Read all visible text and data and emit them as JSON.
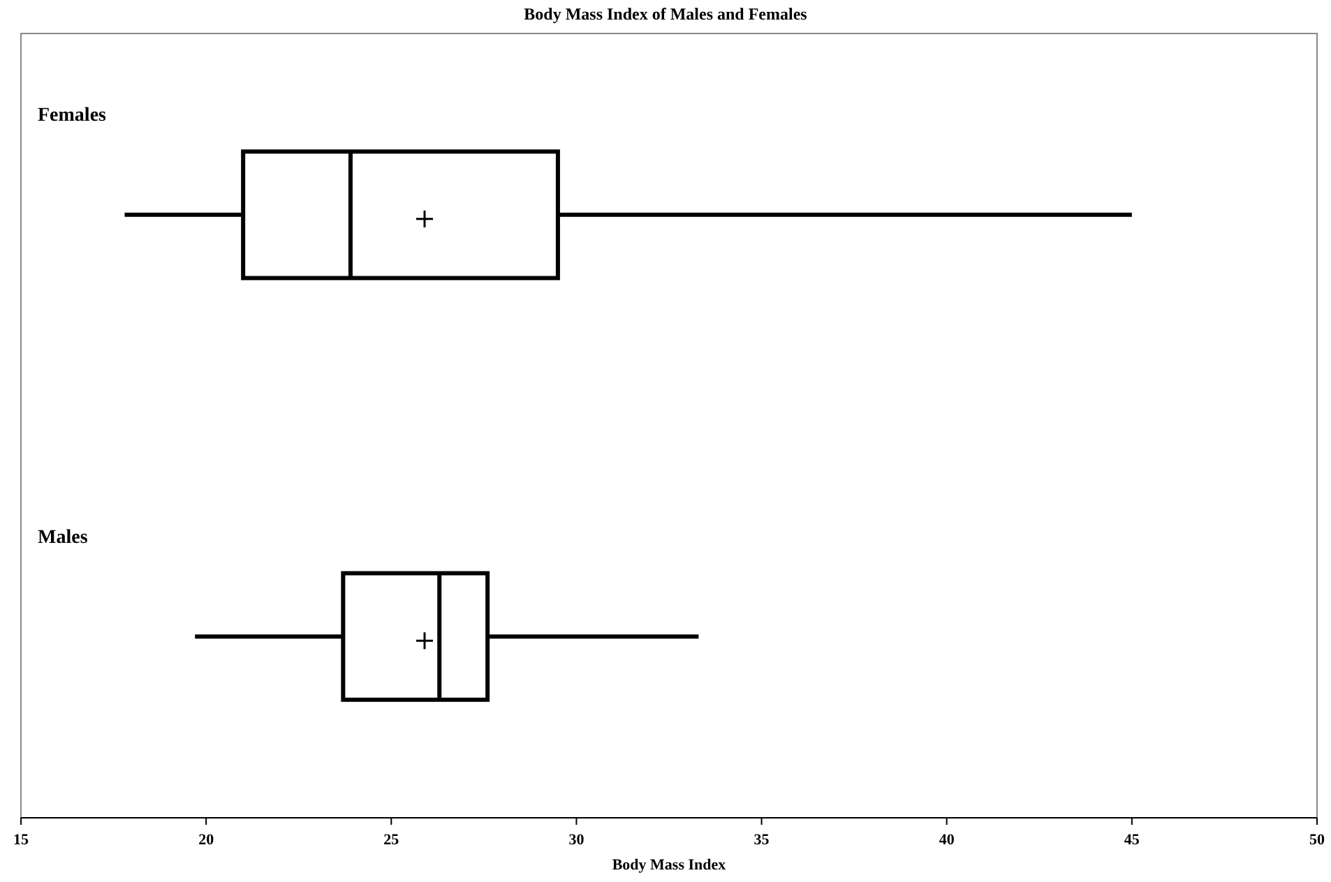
{
  "chart_data": {
    "type": "box",
    "orientation": "horizontal",
    "title": "Body Mass Index of Males and Females",
    "xlabel": "Body Mass Index",
    "categories": [
      "Females",
      "Males"
    ],
    "boxes": [
      {
        "low": 17.8,
        "q1": 21.0,
        "median": 23.9,
        "q3": 29.5,
        "high": 45.0,
        "mean": 25.9
      },
      {
        "low": 19.7,
        "q1": 23.7,
        "median": 26.3,
        "q3": 27.6,
        "high": 33.3,
        "mean": 25.9
      }
    ],
    "xlim": [
      15,
      50
    ],
    "xticks": [
      15,
      20,
      25,
      30,
      35,
      40,
      45,
      50
    ],
    "grid": false
  }
}
